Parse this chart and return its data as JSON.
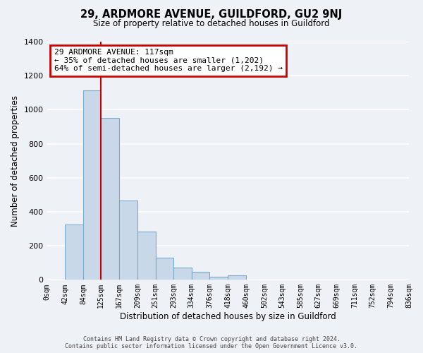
{
  "title": "29, ARDMORE AVENUE, GUILDFORD, GU2 9NJ",
  "subtitle": "Size of property relative to detached houses in Guildford",
  "xlabel": "Distribution of detached houses by size in Guildford",
  "ylabel": "Number of detached properties",
  "bin_labels": [
    "0sqm",
    "42sqm",
    "84sqm",
    "125sqm",
    "167sqm",
    "209sqm",
    "251sqm",
    "293sqm",
    "334sqm",
    "376sqm",
    "418sqm",
    "460sqm",
    "502sqm",
    "543sqm",
    "585sqm",
    "627sqm",
    "669sqm",
    "711sqm",
    "752sqm",
    "794sqm",
    "836sqm"
  ],
  "bar_heights": [
    0,
    325,
    1115,
    950,
    465,
    285,
    130,
    70,
    45,
    20,
    25,
    0,
    0,
    0,
    0,
    0,
    0,
    0,
    0,
    0,
    0
  ],
  "bar_color": "#c8d8e8",
  "bar_edge_color": "#7aaacc",
  "property_line_x": 125,
  "property_line_color": "#cc0000",
  "annotation_text": "29 ARDMORE AVENUE: 117sqm\n← 35% of detached houses are smaller (1,202)\n64% of semi-detached houses are larger (2,192) →",
  "annotation_box_color": "#cc0000",
  "ylim": [
    0,
    1400
  ],
  "yticks": [
    0,
    200,
    400,
    600,
    800,
    1000,
    1200,
    1400
  ],
  "bg_color": "#eef2f6",
  "grid_color": "#ffffff",
  "footer_line1": "Contains HM Land Registry data © Crown copyright and database right 2024.",
  "footer_line2": "Contains public sector information licensed under the Open Government Licence v3.0."
}
